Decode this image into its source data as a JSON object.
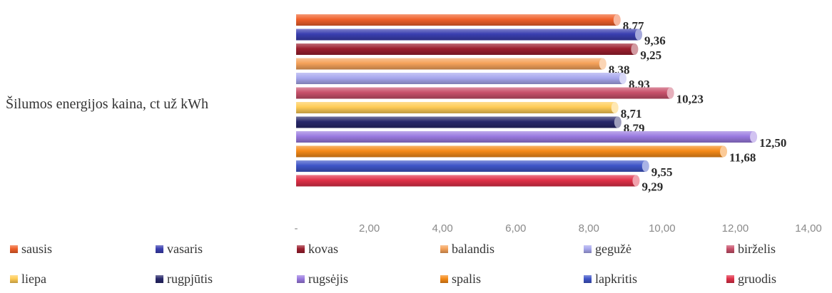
{
  "chart_data": {
    "type": "bar",
    "orientation": "horizontal",
    "category": "Šilumos energijos kaina, ct už kWh",
    "xlim": [
      0,
      14
    ],
    "xticks": [
      "-",
      "2,00",
      "4,00",
      "6,00",
      "8,00",
      "10,00",
      "12,00",
      "14,00"
    ],
    "grid": false,
    "legend_position": "bottom",
    "series": [
      {
        "name": "sausis",
        "value": 8.77,
        "label": "8,77",
        "color": "#f0602a"
      },
      {
        "name": "vasaris",
        "value": 9.36,
        "label": "9,36",
        "color": "#3a3fb0"
      },
      {
        "name": "kovas",
        "value": 9.25,
        "label": "9,25",
        "color": "#9c1f2e"
      },
      {
        "name": "balandis",
        "value": 8.38,
        "label": "8,38",
        "color": "#f5a25a"
      },
      {
        "name": "gegužė",
        "value": 8.93,
        "label": "8,93",
        "color": "#a8a8ee"
      },
      {
        "name": "birželis",
        "value": 10.23,
        "label": "10,23",
        "color": "#c8506a"
      },
      {
        "name": "liepa",
        "value": 8.71,
        "label": "8,71",
        "color": "#ffcc55"
      },
      {
        "name": "rugpjūtis",
        "value": 8.79,
        "label": "8,79",
        "color": "#28286a"
      },
      {
        "name": "rugsėjis",
        "value": 12.5,
        "label": "12,50",
        "color": "#9a7ae0"
      },
      {
        "name": "spalis",
        "value": 11.68,
        "label": "11,68",
        "color": "#f58a18"
      },
      {
        "name": "lapkritis",
        "value": 9.55,
        "label": "9,55",
        "color": "#3f55c8"
      },
      {
        "name": "gruodis",
        "value": 9.29,
        "label": "9,29",
        "color": "#e03048"
      }
    ]
  }
}
